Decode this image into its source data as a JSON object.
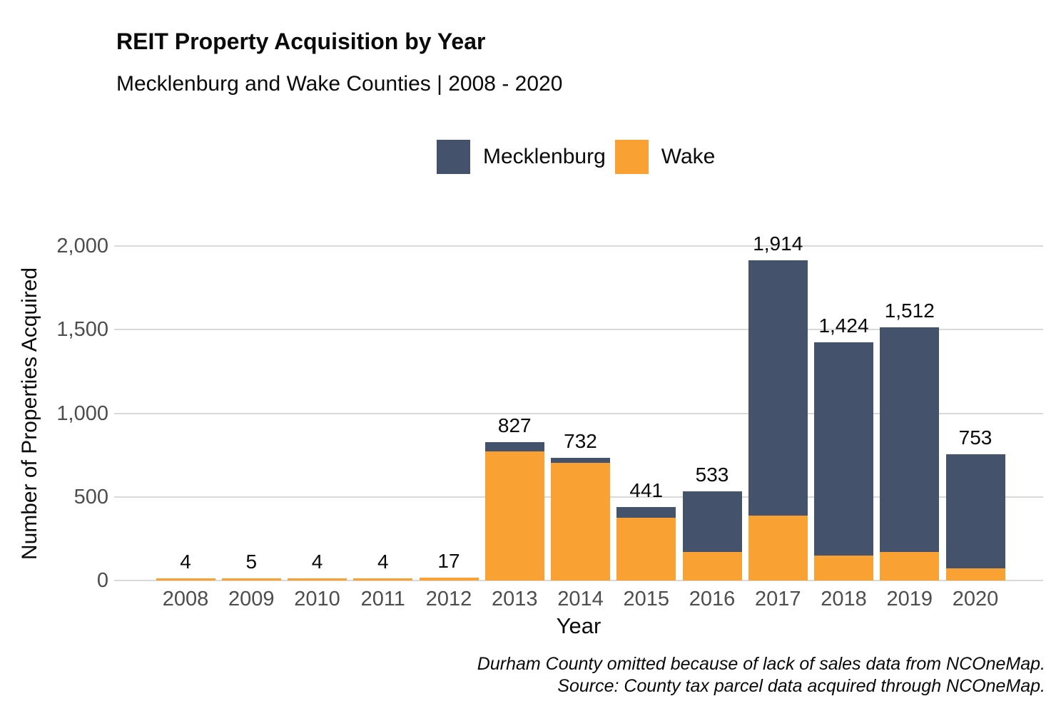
{
  "header": {
    "title": "REIT Property Acquisition by Year",
    "subtitle": "Mecklenburg and Wake Counties | 2008 - 2020"
  },
  "legend": {
    "items": [
      {
        "label": "Mecklenburg",
        "color": "#44526B"
      },
      {
        "label": "Wake",
        "color": "#F9A233"
      }
    ]
  },
  "chart_data": {
    "type": "bar",
    "stacked": true,
    "title": "REIT Property Acquisition by Year",
    "subtitle": "Mecklenburg and Wake Counties | 2008 - 2020",
    "xlabel": "Year",
    "ylabel": "Number of Properties Acquired",
    "ylim": [
      0,
      2000
    ],
    "grid": "horizontal",
    "legend_position": "top",
    "categories": [
      "2008",
      "2009",
      "2010",
      "2011",
      "2012",
      "2013",
      "2014",
      "2015",
      "2016",
      "2017",
      "2018",
      "2019",
      "2020"
    ],
    "series": [
      {
        "name": "Wake",
        "color": "#F9A233",
        "values": [
          4,
          5,
          4,
          4,
          17,
          772,
          703,
          375,
          172,
          390,
          148,
          172,
          74
        ]
      },
      {
        "name": "Mecklenburg",
        "color": "#44526B",
        "values": [
          0,
          0,
          0,
          0,
          0,
          55,
          29,
          66,
          361,
          1524,
          1276,
          1340,
          679
        ]
      }
    ],
    "totals": [
      4,
      5,
      4,
      4,
      17,
      827,
      732,
      441,
      533,
      1914,
      1424,
      1512,
      753
    ],
    "total_labels": [
      "4",
      "5",
      "4",
      "4",
      "17",
      "827",
      "732",
      "441",
      "533",
      "1,914",
      "1,424",
      "1,512",
      "753"
    ],
    "yticks": [
      {
        "value": 0,
        "label": "0"
      },
      {
        "value": 500,
        "label": "500"
      },
      {
        "value": 1000,
        "label": "1,000"
      },
      {
        "value": 1500,
        "label": "1,500"
      },
      {
        "value": 2000,
        "label": "2,000"
      }
    ],
    "grid_color": "#d9d9d9",
    "tick_label_color": "#4d4d4d"
  },
  "footer": {
    "line1": "Durham County omitted because of lack of sales data from NCOneMap.",
    "line2": "Source: County tax parcel data acquired through NCOneMap."
  }
}
